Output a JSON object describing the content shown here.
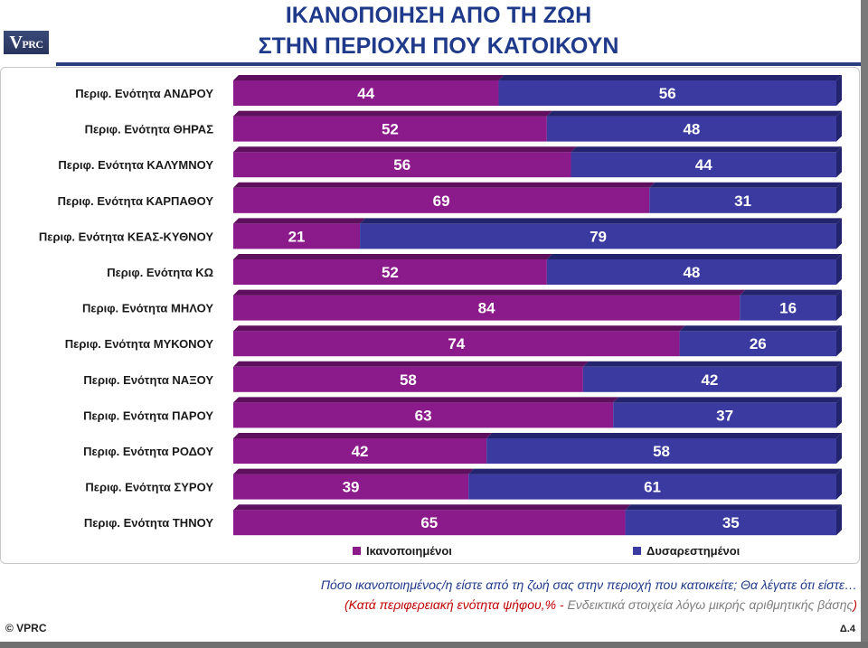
{
  "header": {
    "logo_text_v": "V",
    "logo_text_rest": "PRC",
    "title_line1": "ΙΚΑΝΟΠΟΙΗΣΗ ΑΠΟ ΤΗ ΖΩΗ",
    "title_line2": "ΣΤΗΝ ΠΕΡΙΟΧΗ ΠΟΥ ΚΑΤΟΙΚΟΥΝ"
  },
  "colors": {
    "satisfied": "#8b1a8b",
    "dissatisfied": "#3a3aa0",
    "satisfied_side": "#5e0f5e",
    "dissatisfied_side": "#24246e"
  },
  "chart_data": {
    "type": "bar",
    "orientation": "horizontal",
    "stacked": true,
    "xlim": [
      0,
      100
    ],
    "legend_position": "bottom",
    "grid": false,
    "categories": [
      "Περιφ. Ενότητα ΑΝΔΡΟΥ",
      "Περιφ. Ενότητα ΘΗΡΑΣ",
      "Περιφ. Ενότητα ΚΑΛΥΜΝΟΥ",
      "Περιφ. Ενότητα ΚΑΡΠΑΘΟΥ",
      "Περιφ. Ενότητα ΚΕΑΣ-ΚΥΘΝΟΥ",
      "Περιφ. Ενότητα ΚΩ",
      "Περιφ. Ενότητα ΜΗΛΟΥ",
      "Περιφ. Ενότητα ΜΥΚΟΝΟΥ",
      "Περιφ. Ενότητα ΝΑΞΟΥ",
      "Περιφ. Ενότητα ΠΑΡΟΥ",
      "Περιφ. Ενότητα ΡΟΔΟΥ",
      "Περιφ. Ενότητα ΣΥΡΟΥ",
      "Περιφ. Ενότητα ΤΗΝΟΥ"
    ],
    "series": [
      {
        "name": "Ικανοποιημένοι",
        "values": [
          44,
          52,
          56,
          69,
          21,
          52,
          84,
          74,
          58,
          63,
          42,
          39,
          65
        ]
      },
      {
        "name": "Δυσαρεστημένοι",
        "values": [
          56,
          48,
          44,
          31,
          79,
          48,
          16,
          26,
          42,
          37,
          58,
          61,
          35
        ]
      }
    ]
  },
  "footnote": {
    "question": "Πόσο ικανοποιημένος/η είστε από τη ζωή σας στην περιοχή που κατοικείτε; Θα λέγατε ότι είστε…",
    "basis": "(Κατά περιφερειακή ενότητα ψήφου,% -",
    "caveat": "Ενδεικτικά στοιχεία λόγω μικρής αριθμητικής βάσης",
    "close_paren": ")"
  },
  "footer": {
    "copyright": "© VPRC",
    "page": "Δ.4"
  }
}
